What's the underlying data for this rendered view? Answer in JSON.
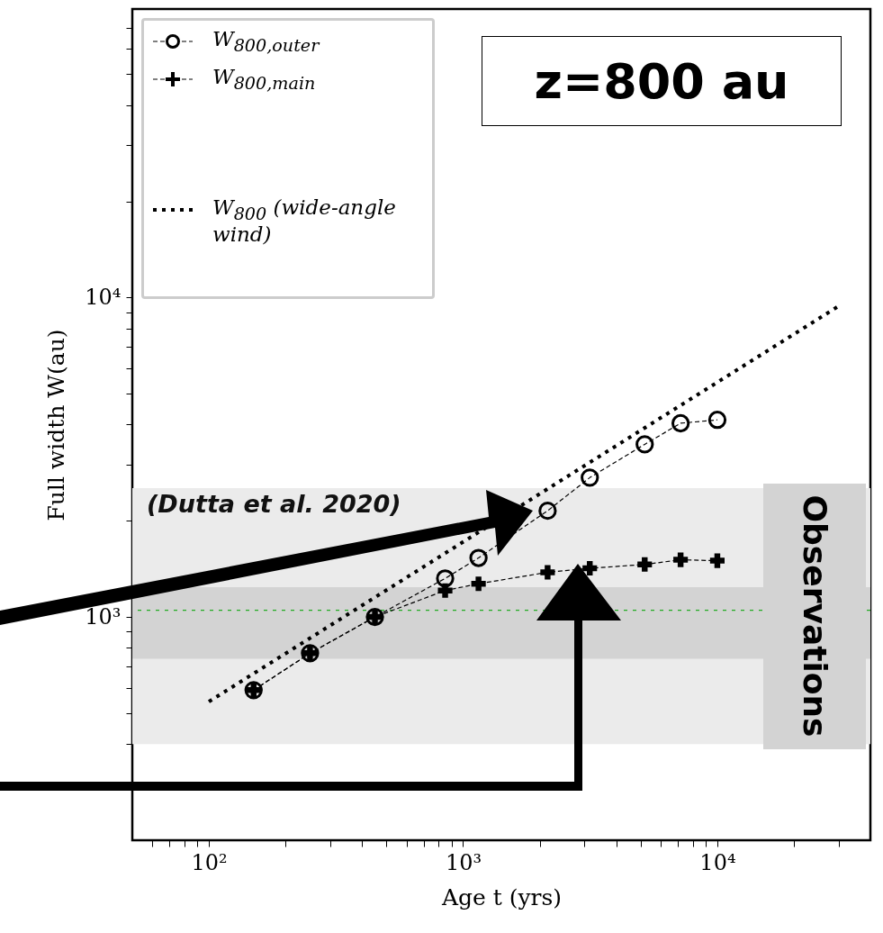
{
  "chart_data": {
    "type": "line",
    "xlabel": "Age t (yrs)",
    "ylabel": "Full width W(au)",
    "log": "xy",
    "xlim": [
      50,
      40000
    ],
    "ylim": [
      200,
      80000
    ],
    "xticks": [
      {
        "value": 60,
        "label": null
      },
      {
        "value": 70,
        "label": null
      },
      {
        "value": 80,
        "label": null
      },
      {
        "value": 90,
        "label": null
      },
      {
        "value": 100,
        "label": "10²"
      },
      {
        "value": 200,
        "label": null
      },
      {
        "value": 300,
        "label": null
      },
      {
        "value": 400,
        "label": null
      },
      {
        "value": 500,
        "label": null
      },
      {
        "value": 600,
        "label": null
      },
      {
        "value": 700,
        "label": null
      },
      {
        "value": 800,
        "label": null
      },
      {
        "value": 900,
        "label": null
      },
      {
        "value": 1000,
        "label": "10³"
      },
      {
        "value": 2000,
        "label": null
      },
      {
        "value": 3000,
        "label": null
      },
      {
        "value": 4000,
        "label": null
      },
      {
        "value": 5000,
        "label": null
      },
      {
        "value": 6000,
        "label": null
      },
      {
        "value": 7000,
        "label": null
      },
      {
        "value": 8000,
        "label": null
      },
      {
        "value": 9000,
        "label": null
      },
      {
        "value": 10000,
        "label": "10⁴"
      },
      {
        "value": 20000,
        "label": null
      },
      {
        "value": 30000,
        "label": null
      }
    ],
    "yticks": [
      {
        "value": 300,
        "label": null
      },
      {
        "value": 400,
        "label": null
      },
      {
        "value": 500,
        "label": null
      },
      {
        "value": 600,
        "label": null
      },
      {
        "value": 700,
        "label": null
      },
      {
        "value": 800,
        "label": null
      },
      {
        "value": 900,
        "label": null
      },
      {
        "value": 1000,
        "label": "10³"
      },
      {
        "value": 2000,
        "label": null
      },
      {
        "value": 3000,
        "label": null
      },
      {
        "value": 4000,
        "label": null
      },
      {
        "value": 5000,
        "label": null
      },
      {
        "value": 6000,
        "label": null
      },
      {
        "value": 7000,
        "label": null
      },
      {
        "value": 8000,
        "label": null
      },
      {
        "value": 9000,
        "label": null
      },
      {
        "value": 10000,
        "label": "10⁴"
      },
      {
        "value": 20000,
        "label": null
      },
      {
        "value": 30000,
        "label": null
      },
      {
        "value": 40000,
        "label": null
      },
      {
        "value": 50000,
        "label": null
      },
      {
        "value": 60000,
        "label": null
      },
      {
        "value": 70000,
        "label": null
      }
    ],
    "series": [
      {
        "name": "W$_{800,outer}$",
        "color": "#000000",
        "marker": "circle",
        "line_style": "dashed",
        "x": [
          150,
          250,
          450,
          850,
          1150,
          2150,
          3150,
          5180,
          7170,
          10000
        ],
        "values": [
          590,
          770,
          1000,
          1320,
          1530,
          2150,
          2730,
          3470,
          4040,
          4140
        ]
      },
      {
        "name": "W$_{800,main}$",
        "color": "#000000",
        "marker": "cross",
        "line_style": "dashed",
        "x": [
          150,
          250,
          450,
          850,
          1150,
          2150,
          3150,
          5180,
          7170,
          10000
        ],
        "values": [
          590,
          770,
          1000,
          1210,
          1270,
          1380,
          1420,
          1460,
          1510,
          1500
        ]
      },
      {
        "name": "W$_{800}$ (wide-angle wind)",
        "color": "#000000",
        "marker": "none",
        "line_style": "dotted",
        "x": [
          100,
          30000
        ],
        "values": [
          543,
          9400
        ]
      }
    ],
    "bands": [
      {
        "axis": "y",
        "from": 400,
        "to": 2530,
        "color": "#ebebeb"
      },
      {
        "axis": "y",
        "from": 740,
        "to": 1240,
        "color": "#d3d3d3"
      }
    ],
    "ref_lines": [
      {
        "axis": "y",
        "value": 1050,
        "color": "#22aa22",
        "line_style": "dotted"
      }
    ],
    "legend": "top left",
    "annotations": [
      "z=800 au",
      "(Dutta et al. 2020)",
      "Observations"
    ]
  }
}
